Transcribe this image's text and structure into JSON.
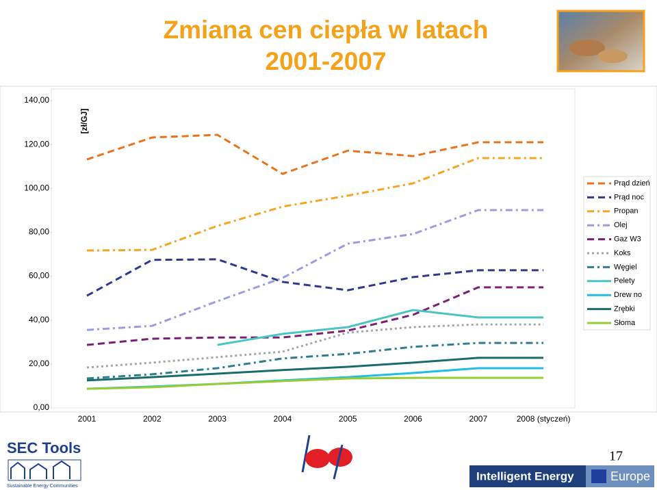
{
  "chart_data": {
    "type": "line",
    "title_lines": [
      "Zmiana cen ciepła w latach",
      "2001-2007"
    ],
    "y_label": "[zł/GJ]",
    "categories": [
      "2001",
      "2002",
      "2003",
      "2004",
      "2005",
      "2006",
      "2007",
      "2008 (styczeń)"
    ],
    "ylim": [
      0,
      140
    ],
    "yticks": [
      {
        "value": 0,
        "label": "0,00"
      },
      {
        "value": 20,
        "label": "20,00"
      },
      {
        "value": 40,
        "label": "40,00"
      },
      {
        "value": 60,
        "label": "60,00"
      },
      {
        "value": 80,
        "label": "80,00"
      },
      {
        "value": 100,
        "label": "100,00"
      },
      {
        "value": 120,
        "label": "120,00"
      },
      {
        "value": 140,
        "label": "140,00"
      }
    ],
    "legend_position": "right",
    "series": [
      {
        "name": "Prąd dzień",
        "color": "#e8731c",
        "dash": "dashed",
        "values": [
          113.2,
          123.2,
          124.4,
          106.6,
          117.2,
          114.7,
          121.0,
          121.0
        ]
      },
      {
        "name": "Prąd noc",
        "color": "#2e3a8c",
        "dash": "dashed",
        "values": [
          51.1,
          67.4,
          67.7,
          57.4,
          53.6,
          59.6,
          62.7,
          62.7
        ]
      },
      {
        "name": "Propan",
        "color": "#f5a623",
        "dash": "dashdot",
        "values": [
          71.7,
          72.0,
          82.9,
          91.7,
          96.7,
          102.3,
          113.8,
          113.8
        ]
      },
      {
        "name": "Olej",
        "color": "#9c9ce0",
        "dash": "dashdot",
        "values": [
          35.5,
          37.4,
          48.6,
          59.2,
          74.8,
          79.2,
          90.1,
          90.1
        ]
      },
      {
        "name": "Gaz W3",
        "color": "#7b1e7a",
        "dash": "dashed",
        "values": [
          28.7,
          31.5,
          32.1,
          32.1,
          35.2,
          42.4,
          54.9,
          54.9
        ]
      },
      {
        "name": "Koks",
        "color": "#a6a6a6",
        "dash": "dotted",
        "values": [
          18.4,
          20.6,
          23.1,
          25.6,
          34.3,
          36.8,
          38.0,
          38.0
        ]
      },
      {
        "name": "Węgiel",
        "color": "#2e7d8c",
        "dash": "dashdot",
        "values": [
          13.4,
          15.3,
          18.1,
          22.5,
          24.6,
          27.8,
          29.6,
          29.6
        ]
      },
      {
        "name": "Pelety",
        "color": "#4bc4c4",
        "dash": "solid",
        "values": [
          null,
          null,
          28.7,
          33.7,
          36.8,
          44.6,
          41.2,
          41.2
        ]
      },
      {
        "name": "Drew no",
        "color": "#22bde6",
        "dash": "solid",
        "values": [
          8.7,
          9.7,
          10.9,
          12.5,
          14.0,
          15.9,
          18.1,
          18.1
        ]
      },
      {
        "name": "Zrębki",
        "color": "#1a6b6b",
        "dash": "solid",
        "values": [
          12.5,
          14.0,
          15.6,
          17.2,
          18.7,
          20.6,
          22.8,
          22.8
        ]
      },
      {
        "name": "Słoma",
        "color": "#99cc33",
        "dash": "solid",
        "values": [
          8.7,
          9.4,
          10.9,
          12.2,
          13.4,
          13.7,
          13.7,
          13.7
        ]
      }
    ]
  },
  "footer": {
    "brand": "SEC Tools",
    "brand_sub": "Sustainable Energy Communities",
    "page_number": "17",
    "program": "Intelligent Energy",
    "program_region": "Europe"
  }
}
